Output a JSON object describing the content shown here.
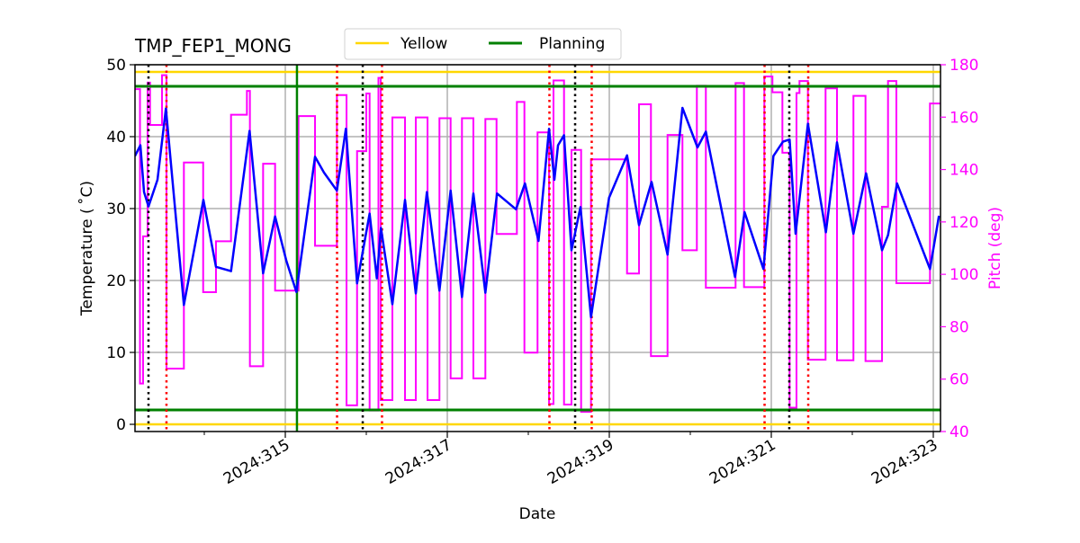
{
  "chart_data": {
    "type": "line",
    "title": "TMP_FEP1_MONG",
    "xlabel": "Date",
    "ylabel": "Temperature ($^\\circ$C)",
    "ylabel_display": "Temperature ( ˚C)",
    "y2label": "Pitch (deg)",
    "xlim": [
      313.144,
      323.11
    ],
    "ylim": [
      -1,
      50
    ],
    "y2lim": [
      40,
      180
    ],
    "x_ticks": [
      315,
      317,
      319,
      321,
      323
    ],
    "x_tick_labels": [
      "2024:315",
      "2024:317",
      "2024:319",
      "2024:321",
      "2024:323"
    ],
    "x_minor_ticks": [
      314,
      316,
      318,
      320,
      322
    ],
    "y_ticks": [
      0,
      10,
      20,
      30,
      40,
      50
    ],
    "y_tick_labels": [
      "0",
      "10",
      "20",
      "30",
      "40",
      "50"
    ],
    "y2_ticks": [
      40,
      60,
      80,
      100,
      120,
      140,
      160,
      180
    ],
    "y2_tick_labels": [
      "40",
      "60",
      "80",
      "100",
      "120",
      "140",
      "160",
      "180"
    ],
    "grid": true,
    "legend": {
      "placement": "top-center",
      "entries": [
        {
          "label": "Yellow",
          "color": "#ffd700"
        },
        {
          "label": "Planning",
          "color": "#008000"
        }
      ]
    },
    "colors": {
      "temperature": "#0000ff",
      "pitch": "#ff00ff",
      "yellow": "#ffd700",
      "planning": "#008000",
      "red_marker": "#ff0000",
      "black_marker": "#000000",
      "grid": "#b0b0b0"
    },
    "limits": {
      "yellow": [
        49,
        0
      ],
      "planning": [
        47,
        2
      ]
    },
    "planning_vertical_x": 315.144,
    "black_dotted_x": [
      313.311,
      315.956,
      318.578,
      321.222
    ],
    "red_dotted_x": [
      313.533,
      315.639,
      316.194,
      318.261,
      318.783,
      320.917,
      321.456
    ],
    "temperature_series": [
      [
        313.144,
        37.3
      ],
      [
        313.211,
        38.8
      ],
      [
        313.256,
        32.3
      ],
      [
        313.311,
        30.3
      ],
      [
        313.422,
        34.0
      ],
      [
        313.526,
        43.9
      ],
      [
        313.748,
        16.6
      ],
      [
        313.989,
        31.2
      ],
      [
        314.144,
        21.9
      ],
      [
        314.33,
        21.3
      ],
      [
        314.559,
        40.8
      ],
      [
        314.726,
        21.0
      ],
      [
        314.874,
        28.9
      ],
      [
        315.014,
        22.7
      ],
      [
        315.137,
        18.4
      ],
      [
        315.367,
        37.2
      ],
      [
        315.478,
        35.0
      ],
      [
        315.637,
        32.5
      ],
      [
        315.748,
        41.1
      ],
      [
        315.886,
        19.6
      ],
      [
        316.041,
        29.3
      ],
      [
        316.13,
        20.3
      ],
      [
        316.181,
        27.3
      ],
      [
        316.322,
        16.7
      ],
      [
        316.478,
        31.2
      ],
      [
        316.611,
        18.2
      ],
      [
        316.748,
        32.3
      ],
      [
        316.903,
        18.6
      ],
      [
        317.041,
        32.5
      ],
      [
        317.181,
        17.7
      ],
      [
        317.322,
        32.1
      ],
      [
        317.47,
        18.3
      ],
      [
        317.614,
        32.1
      ],
      [
        317.848,
        29.9
      ],
      [
        317.959,
        33.5
      ],
      [
        318.126,
        25.5
      ],
      [
        318.256,
        41.1
      ],
      [
        318.322,
        34.0
      ],
      [
        318.367,
        38.8
      ],
      [
        318.441,
        40.2
      ],
      [
        318.533,
        24.2
      ],
      [
        318.644,
        30.2
      ],
      [
        318.774,
        14.9
      ],
      [
        318.997,
        31.5
      ],
      [
        319.219,
        37.4
      ],
      [
        319.367,
        27.7
      ],
      [
        319.522,
        33.7
      ],
      [
        319.719,
        23.6
      ],
      [
        319.903,
        44.0
      ],
      [
        320.089,
        38.5
      ],
      [
        320.192,
        40.7
      ],
      [
        320.552,
        20.5
      ],
      [
        320.67,
        29.5
      ],
      [
        320.903,
        21.6
      ],
      [
        321.026,
        37.3
      ],
      [
        321.144,
        39.3
      ],
      [
        321.226,
        39.6
      ],
      [
        321.3,
        26.5
      ],
      [
        321.452,
        41.8
      ],
      [
        321.674,
        26.7
      ],
      [
        321.811,
        39.2
      ],
      [
        322.014,
        26.5
      ],
      [
        322.17,
        34.9
      ],
      [
        322.367,
        24.2
      ],
      [
        322.441,
        26.3
      ],
      [
        322.552,
        33.5
      ],
      [
        322.959,
        21.6
      ],
      [
        323.07,
        29.0
      ]
    ],
    "pitch_series_steps": [
      [
        313.144,
        170.7
      ],
      [
        313.206,
        58.3
      ],
      [
        313.244,
        114.5
      ],
      [
        313.3,
        173.2
      ],
      [
        313.33,
        157.0
      ],
      [
        313.478,
        176.0
      ],
      [
        313.533,
        64.0
      ],
      [
        313.748,
        142.7
      ],
      [
        313.986,
        93.2
      ],
      [
        314.144,
        112.6
      ],
      [
        314.33,
        160.9
      ],
      [
        314.526,
        170.0
      ],
      [
        314.563,
        64.9
      ],
      [
        314.726,
        142.2
      ],
      [
        314.874,
        93.8
      ],
      [
        315.163,
        160.4
      ],
      [
        315.367,
        110.9
      ],
      [
        315.637,
        168.4
      ],
      [
        315.756,
        50.0
      ],
      [
        315.886,
        147.0
      ],
      [
        316.0,
        169.0
      ],
      [
        316.041,
        48.0
      ],
      [
        316.15,
        175.0
      ],
      [
        316.178,
        52.0
      ],
      [
        316.322,
        159.9
      ],
      [
        316.478,
        52.0
      ],
      [
        316.611,
        159.9
      ],
      [
        316.756,
        52.0
      ],
      [
        316.903,
        159.6
      ],
      [
        317.041,
        60.3
      ],
      [
        317.181,
        159.6
      ],
      [
        317.322,
        60.3
      ],
      [
        317.47,
        159.3
      ],
      [
        317.608,
        115.4
      ],
      [
        317.859,
        165.8
      ],
      [
        317.952,
        70.1
      ],
      [
        318.114,
        154.2
      ],
      [
        318.256,
        50.5
      ],
      [
        318.311,
        174.0
      ],
      [
        318.441,
        50.3
      ],
      [
        318.533,
        147.5
      ],
      [
        318.652,
        47.5
      ],
      [
        318.774,
        143.9
      ],
      [
        319.219,
        100.3
      ],
      [
        319.367,
        164.9
      ],
      [
        319.514,
        68.8
      ],
      [
        319.719,
        153.2
      ],
      [
        319.903,
        109.2
      ],
      [
        320.081,
        172.0
      ],
      [
        320.192,
        94.9
      ],
      [
        320.559,
        173.0
      ],
      [
        320.663,
        95.1
      ],
      [
        320.914,
        175.5
      ],
      [
        321.014,
        169.5
      ],
      [
        321.137,
        146.4
      ],
      [
        321.226,
        49.1
      ],
      [
        321.311,
        169.2
      ],
      [
        321.348,
        173.8
      ],
      [
        321.452,
        67.4
      ],
      [
        321.67,
        171.0
      ],
      [
        321.811,
        67.2
      ],
      [
        322.014,
        168.1
      ],
      [
        322.163,
        66.9
      ],
      [
        322.367,
        125.8
      ],
      [
        322.441,
        173.8
      ],
      [
        322.544,
        96.6
      ],
      [
        322.959,
        165.2
      ],
      [
        323.089,
        165.2
      ]
    ]
  }
}
